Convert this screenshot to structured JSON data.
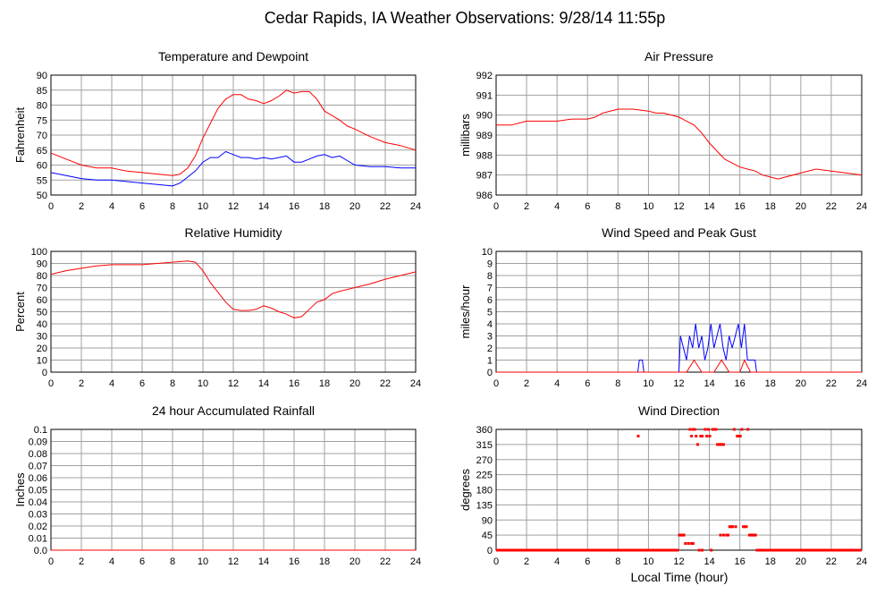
{
  "page_title": "Cedar Rapids, IA Weather Observations: 9/28/14 11:55p",
  "x_axis_label": "Local Time (hour)",
  "chart_data": [
    {
      "id": "temp",
      "type": "line",
      "title": "Temperature and Dewpoint",
      "ylabel": "Fahrenheit",
      "ylim": [
        50,
        90
      ],
      "yticks": [
        50,
        55,
        60,
        65,
        70,
        75,
        80,
        85,
        90
      ],
      "xlim": [
        0,
        24
      ],
      "xticks": [
        0,
        2,
        4,
        6,
        8,
        10,
        12,
        14,
        16,
        18,
        20,
        22,
        24
      ],
      "grid": true,
      "series": [
        {
          "color": "#ff0000",
          "x": [
            0,
            1,
            2,
            3,
            4,
            5,
            6,
            7,
            8,
            8.5,
            9,
            9.5,
            10,
            10.5,
            11,
            11.5,
            12,
            12.5,
            13,
            13.5,
            14,
            14.5,
            15,
            15.5,
            16,
            16.5,
            17,
            17.5,
            18,
            18.5,
            19,
            19.5,
            20,
            21,
            22,
            23,
            24
          ],
          "values": [
            64,
            62,
            60,
            59,
            59,
            58,
            57.5,
            57,
            56.5,
            57,
            59,
            63,
            69,
            74,
            79,
            82,
            83.5,
            83.5,
            82,
            81.5,
            80.5,
            81.5,
            83,
            85,
            84,
            84.5,
            84.5,
            82,
            78,
            76.5,
            75,
            73,
            72,
            69.5,
            67.5,
            66.5,
            65
          ]
        },
        {
          "color": "#0000ff",
          "x": [
            0,
            1,
            2,
            3,
            4,
            5,
            6,
            7,
            8,
            8.5,
            9,
            9.5,
            10,
            10.5,
            11,
            11.5,
            12,
            12.5,
            13,
            13.5,
            14,
            14.5,
            15,
            15.5,
            16,
            16.5,
            17,
            17.5,
            18,
            18.5,
            19,
            19.5,
            20,
            21,
            22,
            23,
            24
          ],
          "values": [
            57.5,
            56.5,
            55.5,
            55,
            55,
            54.5,
            54,
            53.5,
            53,
            54,
            56,
            58,
            61,
            62.5,
            62.5,
            64.5,
            63.5,
            62.5,
            62.5,
            62,
            62.5,
            62,
            62.5,
            63,
            61,
            61,
            62,
            63,
            63.5,
            62.5,
            63,
            61.5,
            60,
            59.5,
            59.5,
            59,
            59
          ]
        }
      ]
    },
    {
      "id": "pres",
      "type": "line",
      "title": "Air Pressure",
      "ylabel": "millibars",
      "ylim": [
        986,
        992
      ],
      "yticks": [
        986,
        987,
        988,
        989,
        990,
        991,
        992
      ],
      "xlim": [
        0,
        24
      ],
      "xticks": [
        0,
        2,
        4,
        6,
        8,
        10,
        12,
        14,
        16,
        18,
        20,
        22,
        24
      ],
      "grid": true,
      "series": [
        {
          "color": "#ff0000",
          "x": [
            0,
            1,
            1.5,
            2,
            3,
            4,
            5,
            6,
            6.5,
            7,
            8,
            9,
            10,
            10.5,
            11,
            12,
            12.5,
            13,
            13.5,
            14,
            14.5,
            15,
            15.5,
            16,
            16.5,
            17,
            17.5,
            18,
            18.5,
            19,
            20,
            21,
            22,
            23,
            24
          ],
          "values": [
            989.5,
            989.5,
            989.6,
            989.7,
            989.7,
            989.7,
            989.8,
            989.8,
            989.9,
            990.1,
            990.3,
            990.3,
            990.2,
            990.1,
            990.1,
            989.9,
            989.7,
            989.5,
            989.1,
            988.6,
            988.2,
            987.8,
            987.6,
            987.4,
            987.3,
            987.2,
            987.0,
            986.9,
            986.8,
            986.9,
            987.1,
            987.3,
            987.2,
            987.1,
            987.0
          ]
        }
      ]
    },
    {
      "id": "rh",
      "type": "line",
      "title": "Relative Humidity",
      "ylabel": "Percent",
      "ylim": [
        0,
        100
      ],
      "yticks": [
        0,
        10,
        20,
        30,
        40,
        50,
        60,
        70,
        80,
        90,
        100
      ],
      "xlim": [
        0,
        24
      ],
      "xticks": [
        0,
        2,
        4,
        6,
        8,
        10,
        12,
        14,
        16,
        18,
        20,
        22,
        24
      ],
      "grid": true,
      "series": [
        {
          "color": "#ff0000",
          "x": [
            0,
            1,
            2,
            3,
            4,
            5,
            6,
            7,
            8,
            9,
            9.5,
            10,
            10.5,
            11,
            11.5,
            12,
            12.5,
            13,
            13.5,
            14,
            14.5,
            15,
            15.5,
            16,
            16.5,
            17,
            17.5,
            18,
            18.5,
            19,
            20,
            21,
            22,
            23,
            24
          ],
          "values": [
            81,
            84,
            86,
            88,
            89,
            89,
            89,
            90,
            91,
            92,
            91,
            84,
            74,
            66,
            58,
            52,
            51,
            51,
            52,
            55,
            53,
            50,
            48,
            45,
            46,
            52,
            58,
            60,
            65,
            67,
            70,
            73,
            77,
            80,
            83
          ]
        }
      ]
    },
    {
      "id": "wind",
      "type": "line",
      "title": "Wind Speed and Peak Gust",
      "ylabel": "miles/hour",
      "ylim": [
        0,
        10
      ],
      "yticks": [
        0,
        1,
        2,
        3,
        4,
        5,
        6,
        7,
        8,
        9,
        10
      ],
      "xlim": [
        0,
        24
      ],
      "xticks": [
        0,
        2,
        4,
        6,
        8,
        10,
        12,
        14,
        16,
        18,
        20,
        22,
        24
      ],
      "grid": true,
      "series": [
        {
          "color": "#0000ff",
          "x": [
            0,
            9.3,
            9.4,
            9.6,
            9.7,
            12,
            12.1,
            12.3,
            12.5,
            12.7,
            12.9,
            13.1,
            13.3,
            13.5,
            13.7,
            13.9,
            14.1,
            14.3,
            14.5,
            14.7,
            14.9,
            15.1,
            15.3,
            15.5,
            15.7,
            15.9,
            16.1,
            16.3,
            16.5,
            16.7,
            16.9,
            17.0,
            17.1,
            24
          ],
          "values": [
            0,
            0,
            1,
            1,
            0,
            0,
            3,
            2,
            1,
            3,
            2,
            4,
            2,
            3,
            1,
            2,
            4,
            2,
            3,
            4,
            2,
            1,
            3,
            2,
            3,
            4,
            2,
            4,
            1,
            1,
            1,
            1,
            0,
            0
          ]
        },
        {
          "color": "#ff0000",
          "x": [
            0,
            12.5,
            13,
            13.5,
            14,
            14.3,
            14.8,
            15.3,
            16,
            16.3,
            16.7,
            24
          ],
          "values": [
            0,
            0,
            1,
            0,
            0,
            0,
            1,
            0,
            0,
            1,
            0,
            0
          ]
        }
      ]
    },
    {
      "id": "rain",
      "type": "line",
      "title": "24 hour Accumulated Rainfall",
      "ylabel": "Inches",
      "ylim": [
        0,
        0.1
      ],
      "yticks": [
        "0.0",
        "0.01",
        "0.02",
        "0.03",
        "0.04",
        "0.05",
        "0.06",
        "0.07",
        "0.08",
        "0.09",
        "0.1"
      ],
      "xlim": [
        0,
        24
      ],
      "xticks": [
        0,
        2,
        4,
        6,
        8,
        10,
        12,
        14,
        16,
        18,
        20,
        22,
        24
      ],
      "grid": true,
      "series": [
        {
          "color": "#ff0000",
          "x": [
            0,
            24
          ],
          "values": [
            0,
            0
          ]
        }
      ]
    },
    {
      "id": "dir",
      "type": "scatter",
      "title": "Wind Direction",
      "ylabel": "degrees",
      "xlabel": "Local Time (hour)",
      "ylim": [
        0,
        360
      ],
      "yticks": [
        0,
        45,
        90,
        135,
        180,
        225,
        270,
        315,
        360
      ],
      "xlim": [
        0,
        24
      ],
      "xticks": [
        0,
        2,
        4,
        6,
        8,
        10,
        12,
        14,
        16,
        18,
        20,
        22,
        24
      ],
      "grid": true,
      "baseline_zero_ranges": [
        [
          0,
          12
        ],
        [
          17.2,
          24
        ]
      ],
      "series": [
        {
          "color": "#ff0000",
          "points": [
            [
              9.3,
              340
            ],
            [
              12.0,
              45
            ],
            [
              12.1,
              45
            ],
            [
              12.2,
              45
            ],
            [
              12.3,
              45
            ],
            [
              12.4,
              20
            ],
            [
              12.6,
              20
            ],
            [
              12.8,
              20
            ],
            [
              12.9,
              20
            ],
            [
              12.7,
              360
            ],
            [
              12.9,
              360
            ],
            [
              13.0,
              360
            ],
            [
              12.8,
              340
            ],
            [
              13.1,
              340
            ],
            [
              13.2,
              315
            ],
            [
              13.4,
              340
            ],
            [
              13.5,
              340
            ],
            [
              13.3,
              0
            ],
            [
              13.5,
              0
            ],
            [
              13.7,
              360
            ],
            [
              13.8,
              340
            ],
            [
              13.9,
              360
            ],
            [
              14.0,
              340
            ],
            [
              14.1,
              0
            ],
            [
              14.2,
              360
            ],
            [
              14.3,
              360
            ],
            [
              14.4,
              360
            ],
            [
              14.5,
              315
            ],
            [
              14.6,
              315
            ],
            [
              14.7,
              315
            ],
            [
              14.8,
              315
            ],
            [
              14.9,
              315
            ],
            [
              14.7,
              45
            ],
            [
              14.9,
              45
            ],
            [
              15.1,
              45
            ],
            [
              15.2,
              45
            ],
            [
              15.3,
              70
            ],
            [
              15.4,
              70
            ],
            [
              15.5,
              70
            ],
            [
              15.6,
              360
            ],
            [
              15.7,
              70
            ],
            [
              15.8,
              340
            ],
            [
              15.9,
              340
            ],
            [
              16.0,
              340
            ],
            [
              16.1,
              360
            ],
            [
              16.2,
              70
            ],
            [
              16.3,
              70
            ],
            [
              16.4,
              70
            ],
            [
              16.5,
              360
            ],
            [
              16.6,
              45
            ],
            [
              16.7,
              45
            ],
            [
              16.8,
              45
            ],
            [
              16.9,
              45
            ],
            [
              17.0,
              45
            ],
            [
              17.1,
              0
            ]
          ]
        }
      ]
    }
  ]
}
